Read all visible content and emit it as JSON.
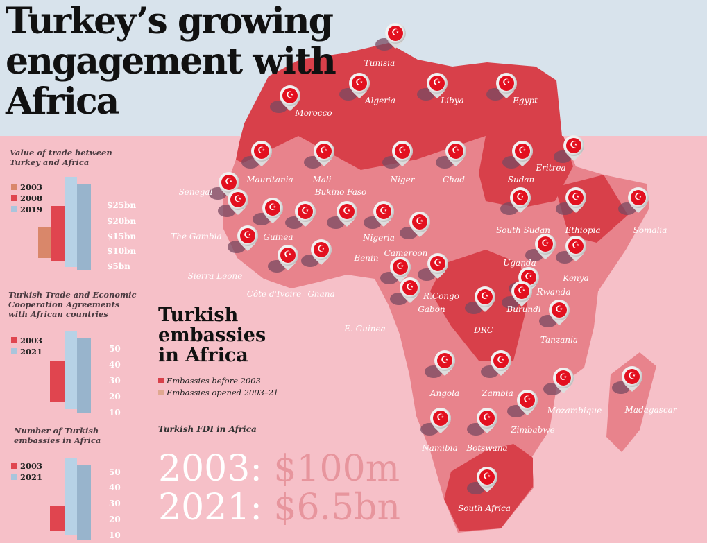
{
  "title": "Turkey’s growing engagement with Africa",
  "colors": {
    "top_band": "#d8e3ec",
    "background": "#f6c0c8",
    "dark_red": "#d8404a",
    "light_red": "#e8838c",
    "c2003_trade": "#d9876a",
    "c2008": "#e0454f",
    "c2019": "#a9c5dc"
  },
  "trade_panel": {
    "title_line1": "Value of trade between",
    "title_line2": "Turkey and Africa",
    "legend": [
      "2003",
      "2008",
      "2019"
    ],
    "ticks": [
      "$25bn",
      "$20bn",
      "$15bn",
      "$10bn",
      "$5bn"
    ]
  },
  "agreements_panel": {
    "title_line1": "Turkish Trade and Economic",
    "title_line2": "Cooperation Agreements",
    "title_line3": "with African countries",
    "legend": [
      "2003",
      "2021"
    ],
    "ticks": [
      "50",
      "40",
      "30",
      "20",
      "10"
    ]
  },
  "embassies_panel": {
    "title_line1": "Number of Turkish",
    "title_line2": "embassies in Africa",
    "legend": [
      "2003",
      "2021"
    ],
    "ticks": [
      "50",
      "40",
      "30",
      "20",
      "10"
    ]
  },
  "chart_data": [
    {
      "type": "bar",
      "title": "Value of trade between Turkey and Africa",
      "categories": [
        "2003",
        "2008",
        "2019"
      ],
      "values": [
        5.4,
        16.5,
        25.3
      ],
      "ylabel": "$bn",
      "ylim": [
        0,
        27
      ]
    },
    {
      "type": "bar",
      "title": "Turkish Trade and Economic Cooperation Agreements with African countries",
      "categories": [
        "2003",
        "2021"
      ],
      "values": [
        23,
        48
      ],
      "ylim": [
        0,
        55
      ]
    },
    {
      "type": "bar",
      "title": "Number of Turkish embassies in Africa",
      "categories": [
        "2003",
        "2021"
      ],
      "values": [
        12,
        43
      ],
      "ylim": [
        0,
        55
      ]
    }
  ],
  "embassies": {
    "title_line1": "Turkish",
    "title_line2": "embassies",
    "title_line3": "in Africa",
    "legend_before": "Embassies before 2003",
    "legend_after": "Embassies opened 2003–21"
  },
  "fdi": {
    "title": "Turkish FDI in Africa",
    "y2003": "2003:",
    "v2003": "$100m",
    "y2021": "2021:",
    "v2021": "$6.5bn"
  },
  "flag_glyph": "☪",
  "countries": [
    "Tunisia",
    "Morocco",
    "Algeria",
    "Libya",
    "Egypt",
    "Mauritania",
    "Mali",
    "Niger",
    "Chad",
    "Sudan",
    "Eritrea",
    "Senegal",
    "Bukino Faso",
    "The Gambia",
    "Guinea",
    "Sierra Leone",
    "Côte d'Ivoire",
    "Ghana",
    "Benin",
    "Nigeria",
    "Cameroon",
    "South Sudan",
    "Ethiopia",
    "Somalia",
    "Uganda",
    "Kenya",
    "Rwanda",
    "Burundi",
    "Gabon",
    "E. Guinea",
    "R.Congo",
    "DRC",
    "Tanzania",
    "Angola",
    "Zambia",
    "Mozambique",
    "Madagascar",
    "Zimbabwe",
    "Namibia",
    "Botswana",
    "South Africa"
  ]
}
